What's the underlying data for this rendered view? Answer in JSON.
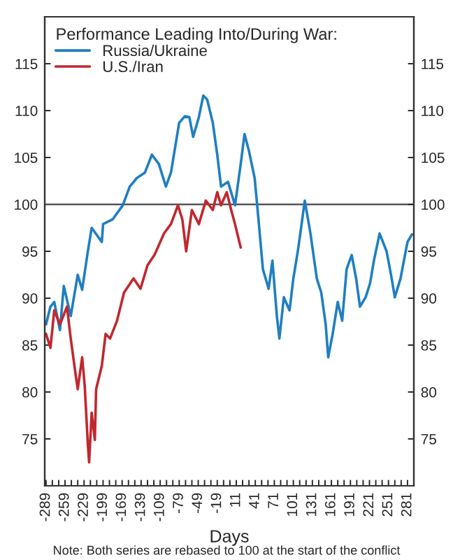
{
  "chart_data": {
    "type": "line",
    "legend_title": "Performance Leading Into/During War:",
    "xlabel": "Days",
    "annotations": [
      "Note: Both series are rebased to 100 at the start of the conflict"
    ],
    "series": [
      {
        "name": "Russia/Ukraine",
        "color": "#1f7fc1",
        "x": [
          -289,
          -282,
          -276,
          -267,
          -261,
          -250,
          -239,
          -232,
          -223,
          -217,
          -201,
          -199,
          -184,
          -168,
          -157,
          -146,
          -133,
          -122,
          -111,
          -100,
          -92,
          -79,
          -70,
          -63,
          -57,
          -48,
          -41,
          -35,
          -26,
          -19,
          -13,
          -2,
          9,
          18,
          24,
          31,
          40,
          46,
          53,
          62,
          68,
          75,
          79,
          86,
          95,
          101,
          108,
          112,
          119,
          128,
          134,
          138,
          145,
          152,
          156,
          163,
          171,
          178,
          185,
          193,
          200,
          206,
          215,
          222,
          228,
          237,
          248,
          255,
          261,
          270,
          277,
          281,
          288
        ],
        "values": [
          87.2,
          89.1,
          89.6,
          86.6,
          91.3,
          88.1,
          92.5,
          90.9,
          95,
          97.5,
          96,
          97.9,
          98.4,
          99.9,
          101.9,
          102.8,
          103.4,
          105.3,
          104.3,
          101.9,
          103.4,
          108.7,
          109.4,
          109.3,
          107.2,
          109.3,
          111.6,
          111.2,
          108.7,
          105.3,
          101.9,
          102.4,
          99.9,
          104.3,
          107.5,
          105.7,
          102.8,
          98.4,
          93.1,
          91,
          94,
          88.1,
          85.7,
          90.1,
          88.7,
          92.1,
          95,
          96.9,
          100.4,
          96.9,
          94,
          92.1,
          90.6,
          87.2,
          83.7,
          86.2,
          89.6,
          87.6,
          93.1,
          94.6,
          92.1,
          89.1,
          90.1,
          91.6,
          94,
          96.9,
          95,
          92.5,
          90.1,
          92.1,
          94.6,
          96,
          96.8
        ]
      },
      {
        "name": "U.S./Iran",
        "color": "#c0282f",
        "x": [
          -289,
          -282,
          -276,
          -267,
          -256,
          -250,
          -243,
          -239,
          -232,
          -228,
          -223,
          -221,
          -217,
          -212,
          -210,
          -201,
          -195,
          -188,
          -177,
          -166,
          -151,
          -140,
          -129,
          -118,
          -103,
          -92,
          -81,
          -74,
          -68,
          -59,
          -48,
          -37,
          -26,
          -19,
          -13,
          -4,
          3,
          9,
          18
        ],
        "values": [
          86.2,
          84.7,
          88.7,
          87.2,
          89.1,
          85.7,
          82.2,
          80.3,
          83.7,
          80.7,
          74.4,
          72.5,
          77.8,
          74.9,
          80.3,
          82.8,
          86.2,
          85.7,
          87.6,
          90.6,
          92.1,
          91,
          93.5,
          94.6,
          96.9,
          97.9,
          99.9,
          98.4,
          95,
          99.4,
          97.9,
          100.4,
          99.4,
          101.3,
          99.9,
          101.3,
          99.4,
          97.9,
          95.4
        ]
      }
    ],
    "xlim": [
      -291,
      291
    ],
    "xticks": [
      -289,
      {
        "value": -279,
        "label": null
      },
      {
        "value": -269,
        "label": null
      },
      -259,
      {
        "value": -249,
        "label": null
      },
      {
        "value": -239,
        "label": null
      },
      -229,
      {
        "value": -219,
        "label": null
      },
      {
        "value": -209,
        "label": null
      },
      -199,
      {
        "value": -189,
        "label": null
      },
      {
        "value": -179,
        "label": null
      },
      -169,
      {
        "value": -159,
        "label": null
      },
      {
        "value": -149,
        "label": null
      },
      -139,
      {
        "value": -129,
        "label": null
      },
      {
        "value": -119,
        "label": null
      },
      -109,
      {
        "value": -99,
        "label": null
      },
      {
        "value": -89,
        "label": null
      },
      -79,
      {
        "value": -69,
        "label": null
      },
      {
        "value": -59,
        "label": null
      },
      -49,
      {
        "value": -39,
        "label": null
      },
      {
        "value": -29,
        "label": null
      },
      -19,
      {
        "value": -9,
        "label": null
      },
      {
        "value": 1,
        "label": null
      },
      11,
      {
        "value": 21,
        "label": null
      },
      {
        "value": 31,
        "label": null
      },
      41,
      {
        "value": 51,
        "label": null
      },
      {
        "value": 61,
        "label": null
      },
      71,
      {
        "value": 81,
        "label": null
      },
      {
        "value": 91,
        "label": null
      },
      101,
      {
        "value": 111,
        "label": null
      },
      {
        "value": 121,
        "label": null
      },
      131,
      {
        "value": 141,
        "label": null
      },
      {
        "value": 151,
        "label": null
      },
      161,
      {
        "value": 171,
        "label": null
      },
      {
        "value": 181,
        "label": null
      },
      191,
      {
        "value": 201,
        "label": null
      },
      {
        "value": 211,
        "label": null
      },
      221,
      {
        "value": 231,
        "label": null
      },
      {
        "value": 241,
        "label": null
      },
      251,
      {
        "value": 261,
        "label": null
      },
      {
        "value": 271,
        "label": null
      },
      281
    ],
    "ylim": [
      70,
      120
    ],
    "yticks": [
      75,
      80,
      85,
      90,
      95,
      100,
      105,
      110,
      115
    ],
    "y2lim": [
      70,
      120
    ],
    "y2ticks": [
      75,
      80,
      85,
      90,
      95,
      100,
      105,
      110,
      115
    ],
    "ref_lines": [
      {
        "axis": "y",
        "value": 100,
        "color": "#555555"
      }
    ],
    "grid": false,
    "legend": "top left",
    "line_style": "solid"
  }
}
